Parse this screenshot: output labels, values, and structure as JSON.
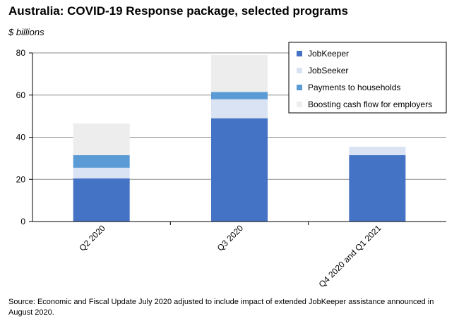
{
  "title": "Australia: COVID-19 Response package, selected programs",
  "units_label": "$ billions",
  "source_note": "Source: Economic and Fiscal Update July 2020 adjusted to include impact of extended JobKeeper assistance announced in August 2020.",
  "colors": {
    "JobKeeper": "#4472c4",
    "JobSeeker": "#dae3f3",
    "Payments to households": "#5b9bd5",
    "Boosting cash flow for employers": "#ededed"
  },
  "chart_data": {
    "type": "bar",
    "stacked": true,
    "title": "Australia: COVID-19 Response package, selected programs",
    "ylabel": "$ billions",
    "xlabel": "",
    "categories": [
      "Q2 2020",
      "Q3 2020",
      "Q4 2020 and Q1 2021"
    ],
    "ylim": [
      0,
      80
    ],
    "yticks": [
      0,
      20,
      40,
      60,
      80
    ],
    "grid": true,
    "legend_position": "top-right",
    "series": [
      {
        "name": "JobKeeper",
        "values": [
          20.5,
          49.0,
          31.5
        ]
      },
      {
        "name": "JobSeeker",
        "values": [
          5.0,
          9.0,
          4.0
        ]
      },
      {
        "name": "Payments to households",
        "values": [
          6.0,
          3.5,
          0
        ]
      },
      {
        "name": "Boosting cash flow for employers",
        "values": [
          15.0,
          17.5,
          0
        ]
      }
    ]
  }
}
